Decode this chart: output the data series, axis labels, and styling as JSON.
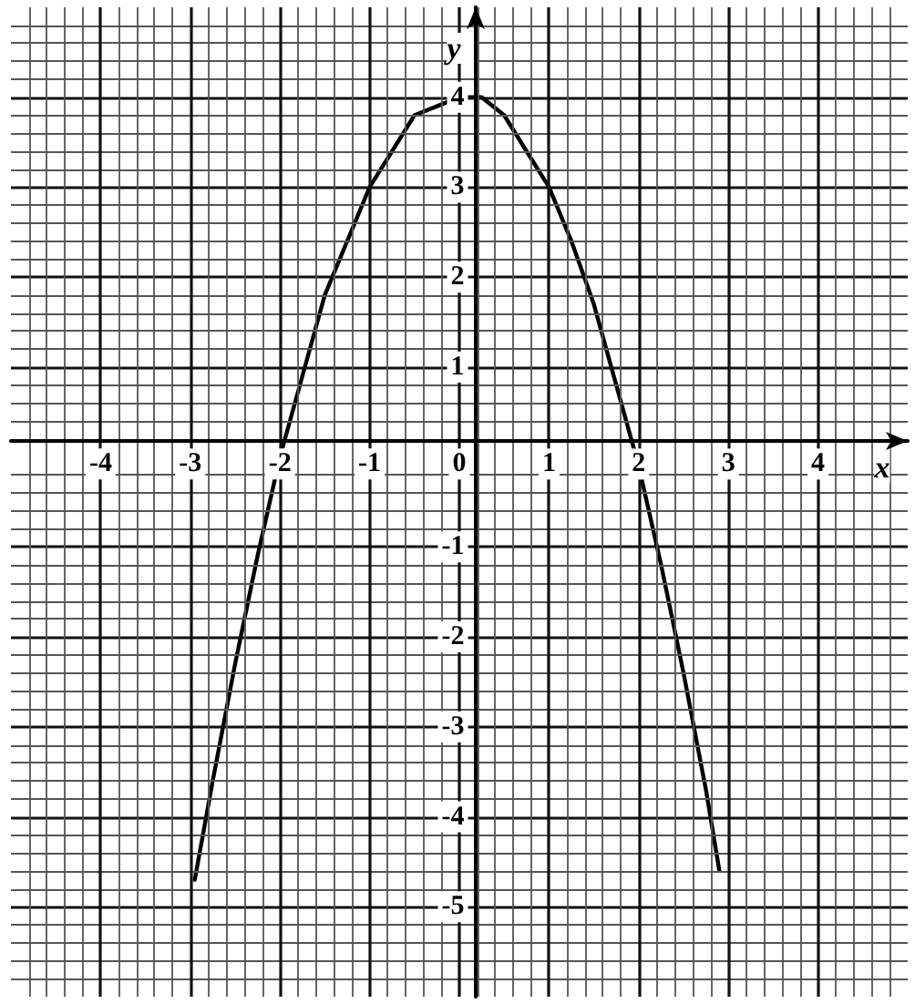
{
  "chart_data": {
    "type": "line",
    "xlabel": "x",
    "ylabel": "y",
    "x": [
      -2.95,
      -2.75,
      -2.5,
      -2.25,
      -2,
      -1.75,
      -1.5,
      -1.25,
      -1,
      -0.75,
      -0.5,
      -0.25,
      0,
      0.25,
      0.5,
      0.75,
      1,
      1.25,
      1.5,
      1.75,
      2,
      2.25,
      2.5,
      2.75,
      2.9
    ],
    "series": [
      {
        "color": "#000000",
        "values": [
          -4.7,
          -3.6,
          -2.3,
          -1.1,
          0,
          0.9,
          1.8,
          2.4,
          3.0,
          3.4,
          3.8,
          3.9,
          4.0,
          4.0,
          3.8,
          3.4,
          3.0,
          2.4,
          1.7,
          0.8,
          -0.1,
          -1.2,
          -2.4,
          -3.7,
          -4.6
        ]
      }
    ],
    "xlim": [
      -5,
      5
    ],
    "ylim": [
      -6,
      5
    ],
    "xticks": [
      -4,
      -3,
      -2,
      -1,
      0,
      1,
      2,
      3,
      4
    ],
    "yticks": [
      -5,
      -4,
      -3,
      -2,
      -1,
      1,
      2,
      3,
      4
    ],
    "grid": true,
    "marker": "none",
    "line_style": "solid"
  }
}
